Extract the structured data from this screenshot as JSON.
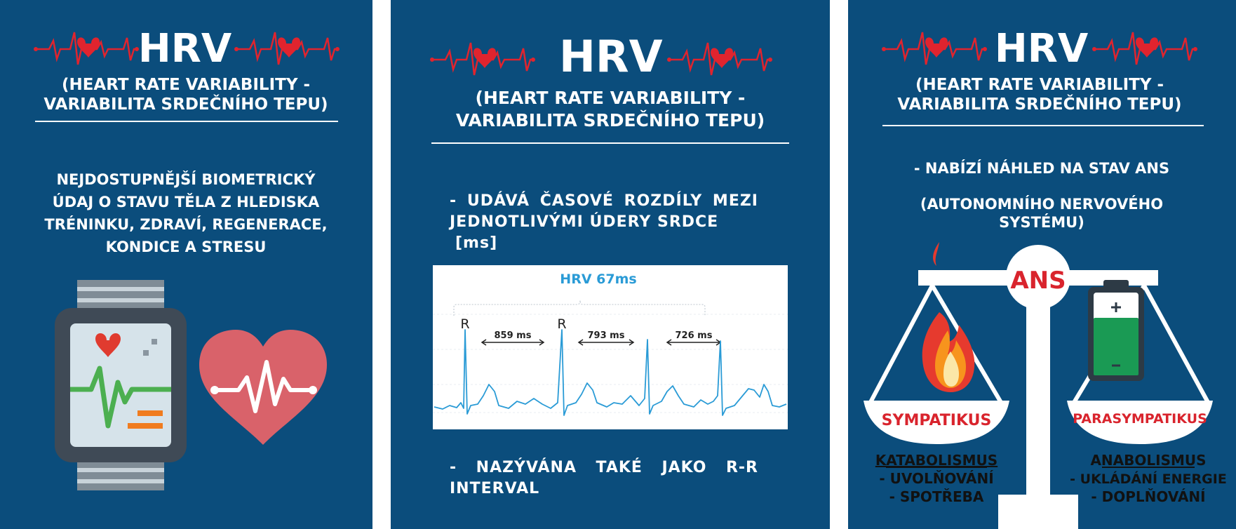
{
  "panel1": {
    "title": "HRV",
    "subtitle_line1": "(HEART RATE VARIABILITY -",
    "subtitle_line2": "VARIABILITA SRDEČNÍHO TEPU)",
    "text_line1": "NEJDOSTUPNĚJŠÍ BIOMETRICKÝ",
    "text_line2": "ÚDAJ O STAVU TĚLA Z HLEDISKA",
    "text_line3": "TRÉNINKU, ZDRAVÍ, REGENERACE,",
    "text_line4": "KONDICE A STRESU"
  },
  "panel2": {
    "title": "HRV",
    "subtitle_line1": "(HEART RATE VARIABILITY -",
    "subtitle_line2": "VARIABILITA SRDEČNÍHO TEPU)",
    "text1_line1": "- UDÁVÁ ČASOVÉ ROZDÍLY MEZI",
    "text1_line2": "JEDNOTLIVÝMI ÚDERY SRDCE",
    "text1_line3": "[ms]",
    "text2_line1": "- NAZÝVÁNA TAKÉ JAKO R-R",
    "text2_line2": "INTERVAL",
    "ecg": {
      "label": "HRV 67ms",
      "r_label_1": "R",
      "r_label_2": "R",
      "intervals": [
        "859 ms",
        "793 ms",
        "726 ms"
      ]
    }
  },
  "panel3": {
    "title": "HRV",
    "subtitle_line1": "(HEART RATE VARIABILITY -",
    "subtitle_line2": "VARIABILITA SRDEČNÍHO TEPU)",
    "text_line1": "- NABÍZÍ NÁHLED NA STAV ANS",
    "text_line2": "(AUTONOMNÍHO NERVOVÉHO",
    "text_line3": "SYSTÉMU)",
    "scale_label": "ANS",
    "left_pan": "SYMPATIKUS",
    "right_pan": "PARASYMPATIKUS",
    "left_head": "KATABOLISMUS",
    "left_item1": "- UVOLŇOVÁNÍ",
    "left_item2": "- SPOTŘEBA",
    "right_head": "ANABOLISMUS",
    "right_item1": "- UKLÁDÁNÍ ENERGIE",
    "right_item2": "- DOPLŇOVÁNÍ"
  },
  "colors": {
    "panel_bg": "#0b4d7c",
    "heart_red": "#e0242e",
    "ecg_blue": "#2a9bd6",
    "pan_text_red": "#d9242d",
    "battery_green": "#1a9a54",
    "flame_orange": "#f15a22"
  }
}
